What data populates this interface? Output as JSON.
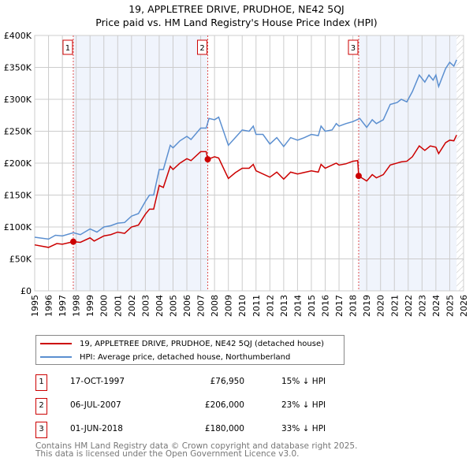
{
  "chart_data": {
    "type": "line",
    "title": "19, APPLETREE DRIVE, PRUDHOE, NE42 5QJ",
    "subtitle": "Price paid vs. HM Land Registry's House Price Index (HPI)",
    "xlim": [
      1995,
      2026
    ],
    "ylim": [
      0,
      400000
    ],
    "yticks": [
      {
        "v": 0,
        "l": "£0"
      },
      {
        "v": 50000,
        "l": "£50K"
      },
      {
        "v": 100000,
        "l": "£100K"
      },
      {
        "v": 150000,
        "l": "£150K"
      },
      {
        "v": 200000,
        "l": "£200K"
      },
      {
        "v": 250000,
        "l": "£250K"
      },
      {
        "v": 300000,
        "l": "£300K"
      },
      {
        "v": 350000,
        "l": "£350K"
      },
      {
        "v": 400000,
        "l": "£400K"
      }
    ],
    "xticks": [
      "1995",
      "1996",
      "1997",
      "1998",
      "1999",
      "2000",
      "2001",
      "2002",
      "2003",
      "2004",
      "2005",
      "2006",
      "2007",
      "2008",
      "2009",
      "2010",
      "2011",
      "2012",
      "2013",
      "2014",
      "2015",
      "2016",
      "2017",
      "2018",
      "2019",
      "2020",
      "2021",
      "2022",
      "2023",
      "2024",
      "2025",
      "2026"
    ],
    "grid": true,
    "shaded_ranges": [
      [
        1997.8,
        2007.5
      ],
      [
        2018.42,
        2025.5
      ]
    ],
    "hatched_from": 2025.5,
    "series": [
      {
        "name": "19, APPLETREE DRIVE, PRUDHOE, NE42 5QJ (detached house)",
        "color": "#cc0000",
        "x": [
          1995,
          1996,
          1996.6,
          1997,
          1997.79,
          1998.3,
          1999,
          1999.3,
          2000,
          2000.5,
          2001,
          2001.5,
          2002,
          2002.5,
          2003,
          2003.3,
          2003.6,
          2004,
          2004.3,
          2004.8,
          2005,
          2005.5,
          2006,
          2006.3,
          2007,
          2007.4,
          2007.51,
          2008,
          2008.3,
          2009,
          2009.5,
          2010,
          2010.5,
          2010.8,
          2011,
          2012,
          2012.5,
          2013,
          2013.5,
          2014,
          2015,
          2015.5,
          2015.7,
          2016,
          2016.8,
          2017,
          2017.5,
          2018,
          2018.35,
          2018.42,
          2019,
          2019.4,
          2019.7,
          2020.2,
          2020.7,
          2021.5,
          2021.9,
          2022.3,
          2022.8,
          2023.2,
          2023.6,
          2024,
          2024.2,
          2024.7,
          2025,
          2025.3,
          2025.5
        ],
        "y": [
          72,
          68,
          74,
          73,
          77,
          76,
          83,
          78,
          86,
          88,
          92,
          90,
          100,
          103,
          120,
          128,
          128,
          165,
          162,
          195,
          190,
          200,
          207,
          204,
          218,
          218,
          206,
          210,
          208,
          176,
          185,
          192,
          192,
          198,
          188,
          178,
          186,
          175,
          186,
          183,
          188,
          186,
          198,
          192,
          200,
          197,
          199,
          203,
          204,
          180,
          172,
          182,
          177,
          182,
          197,
          202,
          203,
          210,
          227,
          220,
          227,
          225,
          215,
          232,
          236,
          235,
          244
        ]
      },
      {
        "name": "HPI: Average price, detached house, Northumberland",
        "color": "#5b8fd0",
        "x": [
          1995,
          1996,
          1996.5,
          1997,
          1997.8,
          1998.3,
          1999,
          1999.5,
          2000,
          2000.5,
          2001,
          2001.5,
          2002,
          2002.5,
          2003,
          2003.3,
          2003.6,
          2004,
          2004.3,
          2004.8,
          2005,
          2005.5,
          2006,
          2006.3,
          2007,
          2007.4,
          2007.6,
          2008,
          2008.3,
          2009,
          2009.5,
          2010,
          2010.5,
          2010.8,
          2011,
          2011.5,
          2012,
          2012.5,
          2013,
          2013.5,
          2014,
          2014.5,
          2015,
          2015.5,
          2015.7,
          2016,
          2016.5,
          2016.8,
          2017,
          2017.5,
          2018,
          2018.5,
          2019,
          2019.4,
          2019.7,
          2020.2,
          2020.7,
          2021.2,
          2021.5,
          2021.9,
          2022.3,
          2022.8,
          2023.2,
          2023.5,
          2023.8,
          2024,
          2024.2,
          2024.7,
          2025,
          2025.3,
          2025.5
        ],
        "y": [
          84,
          81,
          87,
          86,
          91,
          88,
          97,
          92,
          100,
          102,
          106,
          107,
          117,
          121,
          140,
          150,
          150,
          190,
          190,
          228,
          224,
          235,
          242,
          237,
          255,
          255,
          270,
          268,
          272,
          228,
          240,
          252,
          250,
          258,
          245,
          245,
          230,
          240,
          226,
          240,
          236,
          240,
          245,
          243,
          258,
          250,
          252,
          262,
          258,
          262,
          265,
          270,
          256,
          268,
          262,
          268,
          292,
          295,
          300,
          296,
          312,
          338,
          327,
          338,
          330,
          338,
          320,
          348,
          358,
          352,
          362
        ]
      }
    ],
    "y_units": "thousands GBP",
    "sales": [
      {
        "n": "1",
        "x": 1997.79,
        "y": 76.95,
        "date": "17-OCT-1997",
        "price": "£76,950",
        "hpi": "15% ↓ HPI"
      },
      {
        "n": "2",
        "x": 2007.51,
        "y": 206,
        "date": "06-JUL-2007",
        "price": "£206,000",
        "hpi": "23% ↓ HPI"
      },
      {
        "n": "3",
        "x": 2018.42,
        "y": 180,
        "date": "01-JUN-2018",
        "price": "£180,000",
        "hpi": "33% ↓ HPI"
      }
    ],
    "legend_position": "bottom"
  },
  "footer": {
    "line1": "Contains HM Land Registry data © Crown copyright and database right 2025.",
    "line2": "This data is licensed under the Open Government Licence v3.0."
  }
}
